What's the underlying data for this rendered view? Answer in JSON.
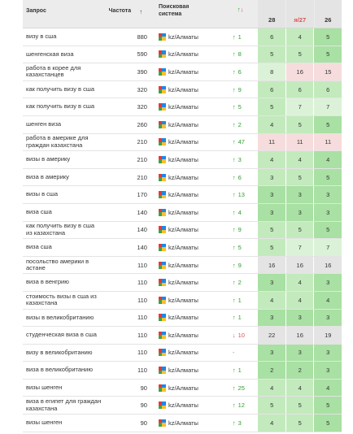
{
  "header": {
    "query": "Запрос",
    "frequency": "Частота",
    "frequency_sort_arrow": "↑",
    "engine_line1": "Поисковая",
    "engine_line2": "система",
    "trend_up": "↑",
    "trend_down": "↓",
    "dates": [
      "28",
      "я/27",
      "26"
    ]
  },
  "colors": {
    "green_strong": "#a9e0a3",
    "green_mid": "#c3eabd",
    "green_light": "#dcf2d8",
    "gray": "#e4e4e4",
    "pink": "#f6dcdc"
  },
  "rows": [
    {
      "q": "визу в сша",
      "f": "880",
      "e": "kz/Алматы",
      "td": "up",
      "tv": "1",
      "p": [
        "6",
        "4",
        "5"
      ],
      "c": [
        "green_mid",
        "green_mid",
        "green_strong"
      ]
    },
    {
      "q": "шенгенская виза",
      "f": "590",
      "e": "kz/Алматы",
      "td": "up",
      "tv": "8",
      "p": [
        "5",
        "5",
        "5"
      ],
      "c": [
        "green_mid",
        "green_mid",
        "green_strong"
      ]
    },
    {
      "q": "работа в корее для казахстанцев",
      "f": "390",
      "e": "kz/Алматы",
      "td": "up",
      "tv": "6",
      "p": [
        "8",
        "16",
        "15"
      ],
      "c": [
        "green_light",
        "pink",
        "pink"
      ]
    },
    {
      "q": "как получить визу в сша",
      "f": "320",
      "e": "kz/Алматы",
      "td": "up",
      "tv": "9",
      "p": [
        "6",
        "6",
        "6"
      ],
      "c": [
        "green_mid",
        "green_mid",
        "green_mid"
      ]
    },
    {
      "q": "как получить визу в сша",
      "f": "320",
      "e": "kz/Алматы",
      "td": "up",
      "tv": "5",
      "p": [
        "5",
        "7",
        "7"
      ],
      "c": [
        "green_mid",
        "green_light",
        "green_light"
      ]
    },
    {
      "q": "шенген виза",
      "f": "260",
      "e": "kz/Алматы",
      "td": "up",
      "tv": "2",
      "p": [
        "4",
        "5",
        "5"
      ],
      "c": [
        "green_mid",
        "green_mid",
        "green_strong"
      ]
    },
    {
      "q": "работа в америке для граждан казахстана",
      "f": "210",
      "e": "kz/Алматы",
      "td": "up",
      "tv": "47",
      "p": [
        "11",
        "11",
        "11"
      ],
      "c": [
        "pink",
        "pink",
        "pink"
      ]
    },
    {
      "q": "визы в америку",
      "f": "210",
      "e": "kz/Алматы",
      "td": "up",
      "tv": "3",
      "p": [
        "4",
        "4",
        "4"
      ],
      "c": [
        "green_mid",
        "green_mid",
        "green_strong"
      ]
    },
    {
      "q": "виза в америку",
      "f": "210",
      "e": "kz/Алматы",
      "td": "up",
      "tv": "6",
      "p": [
        "3",
        "5",
        "5"
      ],
      "c": [
        "green_mid",
        "green_mid",
        "green_strong"
      ]
    },
    {
      "q": "визы в сша",
      "f": "170",
      "e": "kz/Алматы",
      "td": "up",
      "tv": "13",
      "p": [
        "3",
        "3",
        "3"
      ],
      "c": [
        "green_strong",
        "green_strong",
        "green_strong"
      ]
    },
    {
      "q": "виза сша",
      "f": "140",
      "e": "kz/Алматы",
      "td": "up",
      "tv": "4",
      "p": [
        "3",
        "3",
        "3"
      ],
      "c": [
        "green_strong",
        "green_strong",
        "green_strong"
      ]
    },
    {
      "q": "как получить визу в сша из казахстана",
      "f": "140",
      "e": "kz/Алматы",
      "td": "up",
      "tv": "9",
      "p": [
        "5",
        "5",
        "5"
      ],
      "c": [
        "green_mid",
        "green_mid",
        "green_strong"
      ]
    },
    {
      "q": "визa сша",
      "f": "140",
      "e": "kz/Алматы",
      "td": "up",
      "tv": "5",
      "p": [
        "5",
        "7",
        "7"
      ],
      "c": [
        "green_mid",
        "green_light",
        "green_light"
      ]
    },
    {
      "q": "посольство америки в астане",
      "f": "110",
      "e": "kz/Алматы",
      "td": "up",
      "tv": "9",
      "p": [
        "16",
        "16",
        "16"
      ],
      "c": [
        "gray",
        "gray",
        "gray"
      ]
    },
    {
      "q": "виза в венгрию",
      "f": "110",
      "e": "kz/Алматы",
      "td": "up",
      "tv": "2",
      "p": [
        "3",
        "4",
        "3"
      ],
      "c": [
        "green_strong",
        "green_mid",
        "green_strong"
      ]
    },
    {
      "q": "стоимость визы в сша из казахстана",
      "f": "110",
      "e": "kz/Алматы",
      "td": "up",
      "tv": "1",
      "p": [
        "4",
        "4",
        "4"
      ],
      "c": [
        "green_mid",
        "green_mid",
        "green_strong"
      ]
    },
    {
      "q": "визы в великобританию",
      "f": "110",
      "e": "kz/Алматы",
      "td": "up",
      "tv": "1",
      "p": [
        "3",
        "3",
        "3"
      ],
      "c": [
        "green_strong",
        "green_strong",
        "green_strong"
      ]
    },
    {
      "q": "студенческая виза в сша",
      "f": "110",
      "e": "kz/Алматы",
      "td": "down",
      "tv": "10",
      "p": [
        "22",
        "16",
        "19"
      ],
      "c": [
        "gray",
        "gray",
        "gray"
      ]
    },
    {
      "q": "визу в великобританию",
      "f": "110",
      "e": "kz/Алматы",
      "td": "none",
      "tv": "-",
      "p": [
        "3",
        "3",
        "3"
      ],
      "c": [
        "green_strong",
        "green_strong",
        "green_strong"
      ]
    },
    {
      "q": "виза в великобританию",
      "f": "110",
      "e": "kz/Алматы",
      "td": "up",
      "tv": "1",
      "p": [
        "2",
        "2",
        "3"
      ],
      "c": [
        "green_strong",
        "green_strong",
        "green_strong"
      ]
    },
    {
      "q": "визы шенген",
      "f": "90",
      "e": "kz/Алматы",
      "td": "up",
      "tv": "25",
      "p": [
        "4",
        "4",
        "4"
      ],
      "c": [
        "green_mid",
        "green_mid",
        "green_strong"
      ]
    },
    {
      "q": "виза в египет для граждан казахстана",
      "f": "90",
      "e": "kz/Алматы",
      "td": "up",
      "tv": "12",
      "p": [
        "5",
        "5",
        "5"
      ],
      "c": [
        "green_mid",
        "green_mid",
        "green_strong"
      ]
    },
    {
      "q": "визы шенген",
      "f": "90",
      "e": "kz/Алматы",
      "td": "up",
      "tv": "3",
      "p": [
        "4",
        "5",
        "5"
      ],
      "c": [
        "green_mid",
        "green_mid",
        "green_strong"
      ]
    }
  ]
}
